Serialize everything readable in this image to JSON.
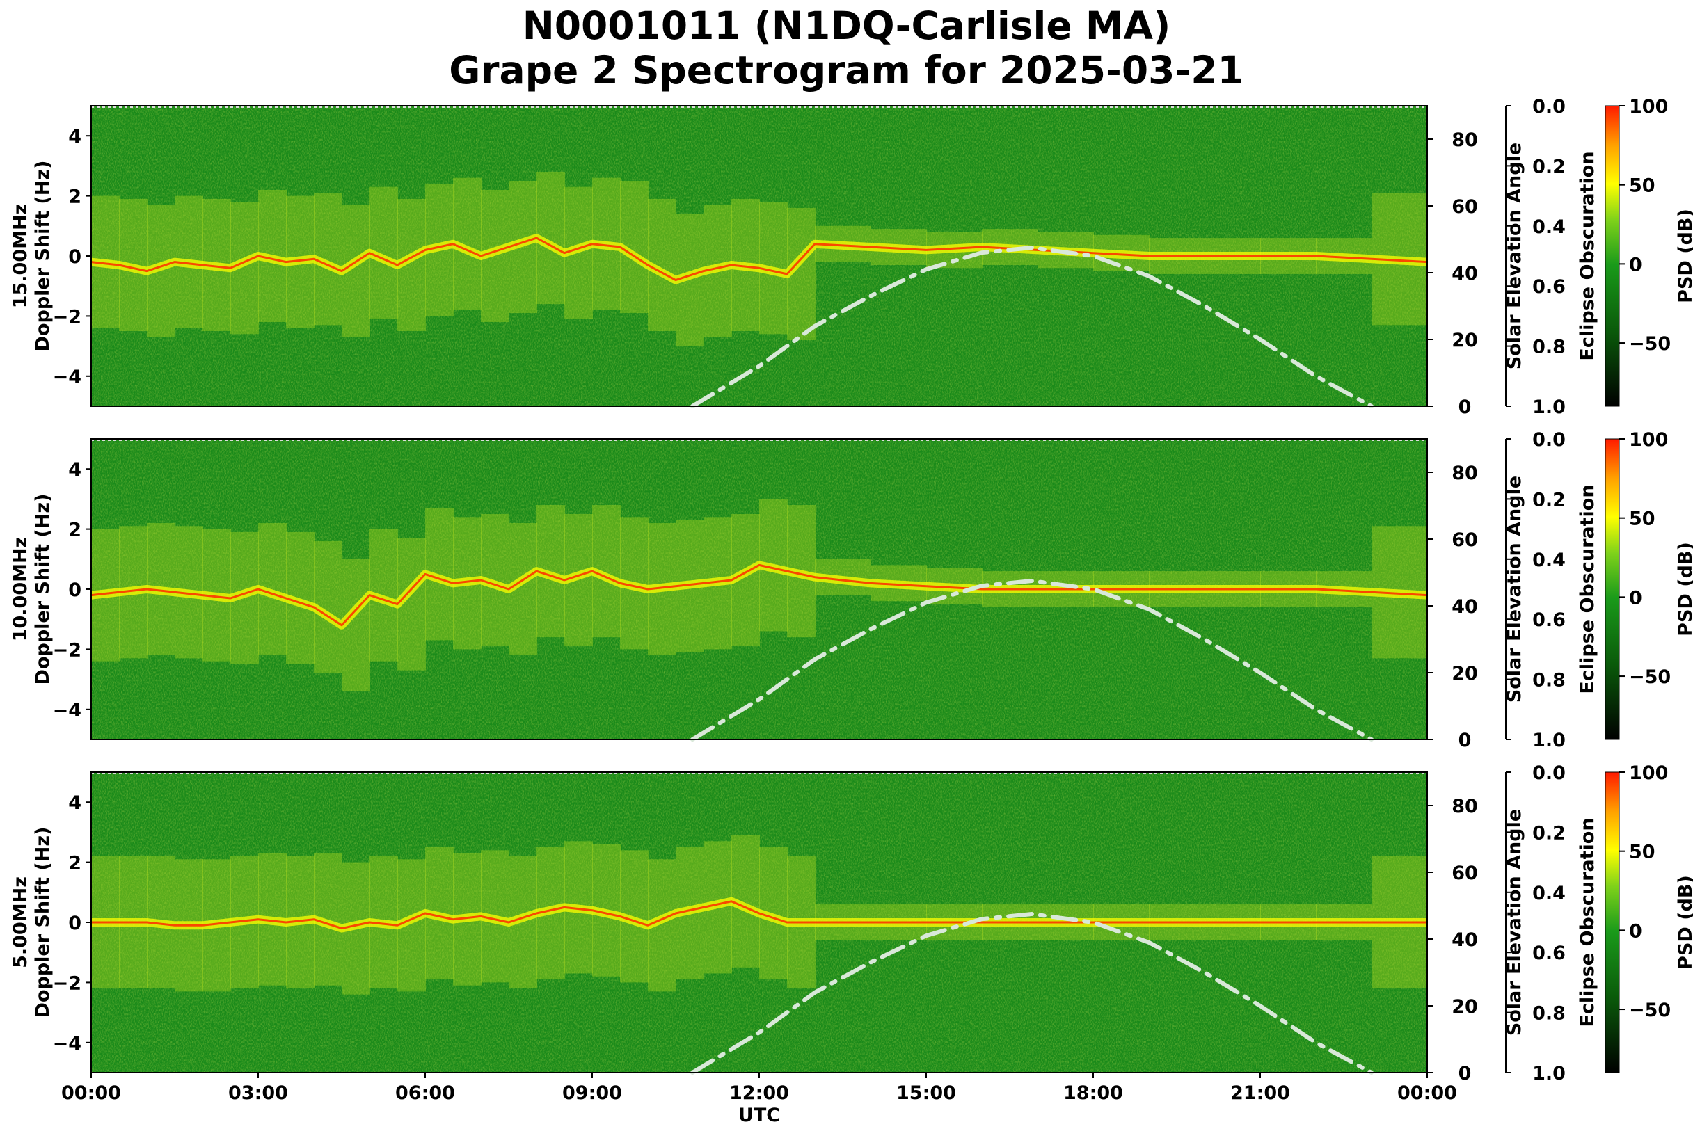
{
  "title_line1": "N0001011 (N1DQ-Carlisle MA)",
  "title_line2": "Grape 2 Spectrogram for 2025-03-21",
  "colors": {
    "background_green": "#1a8a1a",
    "peak": "#ff2a00",
    "mid": "#ffff00",
    "elevation_curve": "#d9e8d9"
  },
  "chart_data": [
    {
      "type": "heatmap",
      "panel": "15 MHz",
      "ylabel": "15.00MHz\nDoppler Shift (Hz)",
      "y2label": "Solar Elevation Angle",
      "y3label": "Eclipse Obscuration",
      "cbar_label": "PSD (dB)",
      "xlim_hours": [
        0,
        24
      ],
      "ylim": [
        -5,
        5
      ],
      "y_ticks": [
        4,
        2,
        0,
        -2,
        -4
      ],
      "y_tick_labels": [
        "4",
        "2",
        "0",
        "−2",
        "−4"
      ],
      "elevation_ticks": [
        80,
        60,
        40,
        20,
        0
      ],
      "elevation_lim": [
        0,
        90
      ],
      "obscuration_ticks": [
        "0.0",
        "0.2",
        "0.4",
        "0.6",
        "0.8",
        "1.0"
      ],
      "cbar_ticks": [
        "100",
        "50",
        "0",
        "−50"
      ],
      "cbar_lim": [
        -90,
        100
      ],
      "elevation_curve": {
        "x_hours": [
          10.8,
          12,
          13,
          14,
          15,
          16,
          16.9,
          18,
          19,
          20,
          21,
          22,
          23,
          23.0
        ],
        "y_deg": [
          0,
          12,
          24,
          33,
          41,
          46,
          47.5,
          45,
          39,
          30,
          20,
          9,
          0,
          0
        ]
      },
      "doppler_trace": {
        "x_hours": [
          0,
          0.5,
          1,
          1.5,
          2,
          2.5,
          3,
          3.5,
          4,
          4.5,
          5,
          5.5,
          6,
          6.5,
          7,
          7.5,
          8,
          8.5,
          9,
          9.5,
          10,
          10.5,
          11,
          11.5,
          12,
          12.5,
          13,
          14,
          15,
          16,
          17,
          18,
          19,
          20,
          21,
          22,
          23,
          24
        ],
        "y_hz": [
          -0.2,
          -0.3,
          -0.5,
          -0.2,
          -0.3,
          -0.4,
          0.0,
          -0.2,
          -0.1,
          -0.5,
          0.1,
          -0.3,
          0.2,
          0.4,
          0.0,
          0.3,
          0.6,
          0.1,
          0.4,
          0.3,
          -0.3,
          -0.8,
          -0.5,
          -0.3,
          -0.4,
          -0.6,
          0.4,
          0.3,
          0.2,
          0.3,
          0.2,
          0.1,
          0.0,
          0.0,
          0.0,
          0.0,
          -0.1,
          -0.2
        ]
      }
    },
    {
      "type": "heatmap",
      "panel": "10 MHz",
      "ylabel": "10.00MHz\nDoppler Shift (Hz)",
      "y2label": "Solar Elevation Angle",
      "y3label": "Eclipse Obscuration",
      "cbar_label": "PSD (dB)",
      "xlim_hours": [
        0,
        24
      ],
      "ylim": [
        -5,
        5
      ],
      "y_ticks": [
        4,
        2,
        0,
        -2,
        -4
      ],
      "y_tick_labels": [
        "4",
        "2",
        "0",
        "−2",
        "−4"
      ],
      "elevation_ticks": [
        80,
        60,
        40,
        20,
        0
      ],
      "elevation_lim": [
        0,
        90
      ],
      "obscuration_ticks": [
        "0.0",
        "0.2",
        "0.4",
        "0.6",
        "0.8",
        "1.0"
      ],
      "cbar_ticks": [
        "100",
        "50",
        "0",
        "−50"
      ],
      "cbar_lim": [
        -90,
        100
      ],
      "elevation_curve": {
        "x_hours": [
          10.8,
          12,
          13,
          14,
          15,
          16,
          16.9,
          18,
          19,
          20,
          21,
          22,
          23,
          23.0
        ],
        "y_deg": [
          0,
          12,
          24,
          33,
          41,
          46,
          47.5,
          45,
          39,
          30,
          20,
          9,
          0,
          0
        ]
      },
      "doppler_trace": {
        "x_hours": [
          0,
          0.5,
          1,
          1.5,
          2,
          2.5,
          3,
          3.5,
          4,
          4.5,
          5,
          5.5,
          6,
          6.5,
          7,
          7.5,
          8,
          8.5,
          9,
          9.5,
          10,
          10.5,
          11,
          11.5,
          12,
          12.5,
          13,
          14,
          15,
          16,
          17,
          18,
          19,
          20,
          21,
          22,
          23,
          24
        ],
        "y_hz": [
          -0.2,
          -0.1,
          0.0,
          -0.1,
          -0.2,
          -0.3,
          0.0,
          -0.3,
          -0.6,
          -1.2,
          -0.2,
          -0.5,
          0.5,
          0.2,
          0.3,
          0.0,
          0.6,
          0.3,
          0.6,
          0.2,
          0.0,
          0.1,
          0.2,
          0.3,
          0.8,
          0.6,
          0.4,
          0.2,
          0.1,
          0.0,
          0.0,
          0.0,
          0.0,
          0.0,
          0.0,
          0.0,
          -0.1,
          -0.2
        ]
      }
    },
    {
      "type": "heatmap",
      "panel": "5 MHz",
      "ylabel": "5.00MHz\nDoppler Shift (Hz)",
      "xlabel": "UTC",
      "y2label": "Solar Elevation Angle",
      "y3label": "Eclipse Obscuration",
      "cbar_label": "PSD (dB)",
      "xlim_hours": [
        0,
        24
      ],
      "x_ticks": [
        "00:00",
        "03:00",
        "06:00",
        "09:00",
        "12:00",
        "15:00",
        "18:00",
        "21:00",
        "00:00"
      ],
      "ylim": [
        -5,
        5
      ],
      "y_ticks": [
        4,
        2,
        0,
        -2,
        -4
      ],
      "y_tick_labels": [
        "4",
        "2",
        "0",
        "−2",
        "−4"
      ],
      "elevation_ticks": [
        80,
        60,
        40,
        20,
        0
      ],
      "elevation_lim": [
        0,
        90
      ],
      "obscuration_ticks": [
        "0.0",
        "0.2",
        "0.4",
        "0.6",
        "0.8",
        "1.0"
      ],
      "cbar_ticks": [
        "100",
        "50",
        "0",
        "−50"
      ],
      "cbar_lim": [
        -90,
        100
      ],
      "elevation_curve": {
        "x_hours": [
          10.8,
          12,
          13,
          14,
          15,
          16,
          16.9,
          18,
          19,
          20,
          21,
          22,
          23,
          23.0
        ],
        "y_deg": [
          0,
          12,
          24,
          33,
          41,
          46,
          47.5,
          45,
          39,
          30,
          20,
          9,
          0,
          0
        ]
      },
      "doppler_trace": {
        "x_hours": [
          0,
          0.5,
          1,
          1.5,
          2,
          2.5,
          3,
          3.5,
          4,
          4.5,
          5,
          5.5,
          6,
          6.5,
          7,
          7.5,
          8,
          8.5,
          9,
          9.5,
          10,
          10.5,
          11,
          11.5,
          12,
          12.5,
          13,
          14,
          15,
          16,
          17,
          18,
          19,
          20,
          21,
          22,
          23,
          24
        ],
        "y_hz": [
          0.0,
          0.0,
          0.0,
          -0.1,
          -0.1,
          0.0,
          0.1,
          0.0,
          0.1,
          -0.2,
          0.0,
          -0.1,
          0.3,
          0.1,
          0.2,
          0.0,
          0.3,
          0.5,
          0.4,
          0.2,
          -0.1,
          0.3,
          0.5,
          0.7,
          0.3,
          0.0,
          0.0,
          0.0,
          0.0,
          0.0,
          0.0,
          0.0,
          0.0,
          0.0,
          0.0,
          0.0,
          0.0,
          0.0
        ]
      }
    }
  ]
}
